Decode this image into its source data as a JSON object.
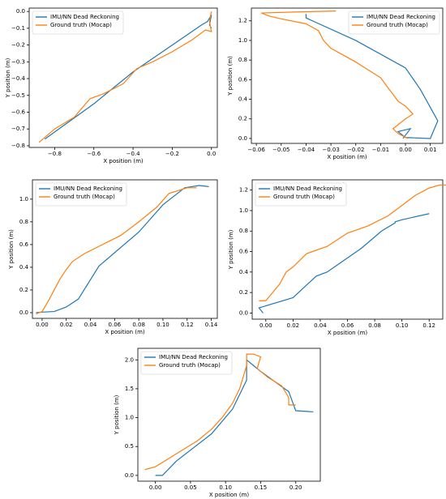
{
  "chart_data": [
    {
      "type": "line",
      "xlabel": "X position (m)",
      "ylabel": "Y position (m)",
      "legend": "upper left",
      "xlim": [
        -0.93,
        0.03
      ],
      "ylim": [
        -0.81,
        0.02
      ],
      "xticks": [
        {
          "value": -0.8,
          "label": "−0.8"
        },
        {
          "value": -0.6,
          "label": "−0.6"
        },
        {
          "value": -0.4,
          "label": "−0.4"
        },
        {
          "value": -0.2,
          "label": "−0.2"
        },
        {
          "value": 0,
          "label": "0.0"
        }
      ],
      "yticks": [
        {
          "value": 0,
          "label": "0.0"
        },
        {
          "value": -0.1,
          "label": "−0.1"
        },
        {
          "value": -0.2,
          "label": "−0.2"
        },
        {
          "value": -0.3,
          "label": "−0.3"
        },
        {
          "value": -0.4,
          "label": "−0.4"
        },
        {
          "value": -0.5,
          "label": "−0.5"
        },
        {
          "value": -0.6,
          "label": "−0.6"
        },
        {
          "value": -0.7,
          "label": "−0.7"
        },
        {
          "value": -0.8,
          "label": "−0.8"
        }
      ],
      "series": [
        {
          "name": "IMU/NN Dead Reckoning",
          "color": "#1f77b4",
          "x": [
            -0.85,
            -0.6,
            -0.4,
            -0.2,
            -0.05,
            -0.02,
            0,
            -0.01,
            0
          ],
          "values": [
            -0.76,
            -0.55,
            -0.36,
            -0.2,
            -0.08,
            -0.06,
            -0.02,
            -0.08,
            -0.1
          ]
        },
        {
          "name": "Ground truth (Mocap)",
          "color": "#ff7f0e",
          "x": [
            -0.88,
            -0.8,
            -0.7,
            -0.62,
            -0.55,
            -0.45,
            -0.38,
            -0.3,
            -0.2,
            -0.1,
            -0.03,
            0,
            -0.01,
            0
          ],
          "values": [
            -0.78,
            -0.7,
            -0.63,
            -0.52,
            -0.49,
            -0.43,
            -0.34,
            -0.3,
            -0.24,
            -0.17,
            -0.11,
            -0.12,
            -0.06,
            0
          ]
        }
      ]
    },
    {
      "type": "line",
      "xlabel": "X position (m)",
      "ylabel": "Y position (m)",
      "legend": "upper right",
      "xlim": [
        -0.062,
        0.015
      ],
      "ylim": [
        -0.05,
        1.33
      ],
      "xticks": [
        {
          "value": -0.06,
          "label": "−0.06"
        },
        {
          "value": -0.05,
          "label": "−0.05"
        },
        {
          "value": -0.04,
          "label": "−0.04"
        },
        {
          "value": -0.03,
          "label": "−0.03"
        },
        {
          "value": -0.02,
          "label": "−0.02"
        },
        {
          "value": -0.01,
          "label": "−0.01"
        },
        {
          "value": 0,
          "label": "0.00"
        },
        0.01
      ],
      "yticks": [
        {
          "value": 0,
          "label": "0.0"
        },
        0.2,
        0.4,
        0.6,
        0.8,
        {
          "value": 1,
          "label": "1.0"
        },
        1.2
      ],
      "series": [
        {
          "name": "IMU/NN Dead Reckoning",
          "color": "#1f77b4",
          "x": [
            -0.04,
            -0.04,
            -0.02,
            0,
            0.006,
            0.013,
            0.01,
            0,
            -0.003,
            0.002,
            -0.001
          ],
          "values": [
            1.27,
            1.23,
            1.0,
            0.72,
            0.5,
            0.18,
            0.0,
            0.01,
            0.07,
            0.1,
            0.0
          ]
        },
        {
          "name": "Ground truth (Mocap)",
          "color": "#ff7f0e",
          "x": [
            -0.028,
            -0.045,
            -0.058,
            -0.055,
            -0.05,
            -0.04,
            -0.035,
            -0.033,
            -0.03,
            -0.025,
            -0.02,
            -0.015,
            -0.01,
            -0.008,
            -0.005,
            -0.003,
            0,
            0.003,
            0,
            -0.005,
            -0.003,
            0.001
          ],
          "values": [
            1.3,
            1.29,
            1.28,
            1.25,
            1.22,
            1.17,
            1.1,
            1.0,
            0.92,
            0.85,
            0.78,
            0.7,
            0.62,
            0.55,
            0.45,
            0.38,
            0.33,
            0.25,
            0.2,
            0.1,
            0.05,
            0.0
          ]
        }
      ]
    },
    {
      "type": "line",
      "xlabel": "X position (m)",
      "ylabel": "Y position (m)",
      "legend": "upper left",
      "xlim": [
        -0.008,
        0.145
      ],
      "ylim": [
        -0.05,
        1.17
      ],
      "xticks": [
        {
          "value": 0,
          "label": "0.00"
        },
        0.02,
        0.04,
        0.06,
        0.08,
        {
          "value": 0.1,
          "label": "0.10"
        },
        0.12,
        0.14
      ],
      "yticks": [
        {
          "value": 0,
          "label": "0.0"
        },
        0.2,
        0.4,
        0.6,
        0.8,
        {
          "value": 1,
          "label": "1.0"
        }
      ],
      "series": [
        {
          "name": "IMU/NN Dead Reckoning",
          "color": "#1f77b4",
          "x": [
            -0.005,
            0,
            0.01,
            0.02,
            0.03,
            0.047,
            0.08,
            0.1,
            0.118,
            0.13,
            0.138
          ],
          "values": [
            0,
            0.005,
            0.01,
            0.05,
            0.12,
            0.41,
            0.71,
            0.95,
            1.1,
            1.12,
            1.11
          ]
        },
        {
          "name": "Ground truth (Mocap)",
          "color": "#ff7f0e",
          "x": [
            -0.005,
            0,
            0.005,
            0.01,
            0.015,
            0.02,
            0.025,
            0.035,
            0.05,
            0.065,
            0.08,
            0.095,
            0.105,
            0.12,
            0.128
          ],
          "values": [
            -0.01,
            0.01,
            0.1,
            0.2,
            0.3,
            0.38,
            0.45,
            0.52,
            0.6,
            0.68,
            0.8,
            0.93,
            1.05,
            1.1,
            1.1
          ]
        }
      ]
    },
    {
      "type": "line",
      "xlabel": "X position (m)",
      "ylabel": "Y position (m)",
      "legend": "upper left",
      "xlim": [
        -0.01,
        0.13
      ],
      "ylim": [
        -0.06,
        1.3
      ],
      "xticks": [
        {
          "value": 0,
          "label": "0.00"
        },
        0.02,
        0.04,
        0.06,
        0.08,
        {
          "value": 0.1,
          "label": "0.10"
        },
        0.12
      ],
      "yticks": [
        {
          "value": 0,
          "label": "0.0"
        },
        0.2,
        0.4,
        0.6,
        0.8,
        {
          "value": 1,
          "label": "1.0"
        },
        1.2
      ],
      "series": [
        {
          "name": "IMU/NN Dead Reckoning",
          "color": "#1f77b4",
          "x": [
            -0.002,
            -0.005,
            0.02,
            0.037,
            0.045,
            0.07,
            0.085,
            0.095,
            0.095,
            0.1,
            0.12
          ],
          "values": [
            0.0,
            0.05,
            0.15,
            0.36,
            0.4,
            0.63,
            0.8,
            0.88,
            0.89,
            0.91,
            0.97
          ]
        },
        {
          "name": "Ground truth (Mocap)",
          "color": "#ff7f0e",
          "x": [
            -0.005,
            0,
            0.005,
            0.01,
            0.015,
            0.02,
            0.03,
            0.045,
            0.06,
            0.075,
            0.09,
            0.1,
            0.11,
            0.12,
            0.128,
            0.135
          ],
          "values": [
            0.12,
            0.12,
            0.2,
            0.28,
            0.4,
            0.45,
            0.58,
            0.65,
            0.78,
            0.85,
            0.95,
            1.05,
            1.15,
            1.22,
            1.25,
            1.25
          ]
        }
      ]
    },
    {
      "type": "line",
      "xlabel": "X position (m)",
      "ylabel": "Y position (m)",
      "legend": "upper left",
      "xlim": [
        -0.025,
        0.235
      ],
      "ylim": [
        -0.1,
        2.2
      ],
      "xticks": [
        {
          "value": 0,
          "label": "0.00"
        },
        0.05,
        {
          "value": 0.1,
          "label": "0.10"
        },
        0.15,
        {
          "value": 0.2,
          "label": "0.20"
        }
      ],
      "yticks": [
        {
          "value": 0,
          "label": "0.0"
        },
        0.5,
        {
          "value": 1,
          "label": "1.0"
        },
        1.5,
        {
          "value": 2,
          "label": "2.0"
        }
      ],
      "series": [
        {
          "name": "IMU/NN Dead Reckoning",
          "color": "#1f77b4",
          "x": [
            0,
            0.01,
            0.03,
            0.08,
            0.11,
            0.13,
            0.13,
            0.15,
            0.19,
            0.2,
            0.225
          ],
          "values": [
            0,
            0,
            0.25,
            0.72,
            1.15,
            1.65,
            2.0,
            1.8,
            1.45,
            1.12,
            1.1
          ]
        },
        {
          "name": "Ground truth (Mocap)",
          "color": "#ff7f0e",
          "x": [
            -0.015,
            0,
            0.02,
            0.04,
            0.06,
            0.08,
            0.095,
            0.11,
            0.12,
            0.125,
            0.13,
            0.13,
            0.14,
            0.15,
            0.145,
            0.16,
            0.18,
            0.19,
            0.19,
            0.2
          ],
          "values": [
            0.1,
            0.15,
            0.3,
            0.45,
            0.6,
            0.8,
            1.0,
            1.25,
            1.5,
            1.7,
            1.9,
            2.1,
            2.1,
            2.05,
            1.85,
            1.7,
            1.55,
            1.35,
            1.22,
            1.22
          ]
        }
      ]
    }
  ]
}
